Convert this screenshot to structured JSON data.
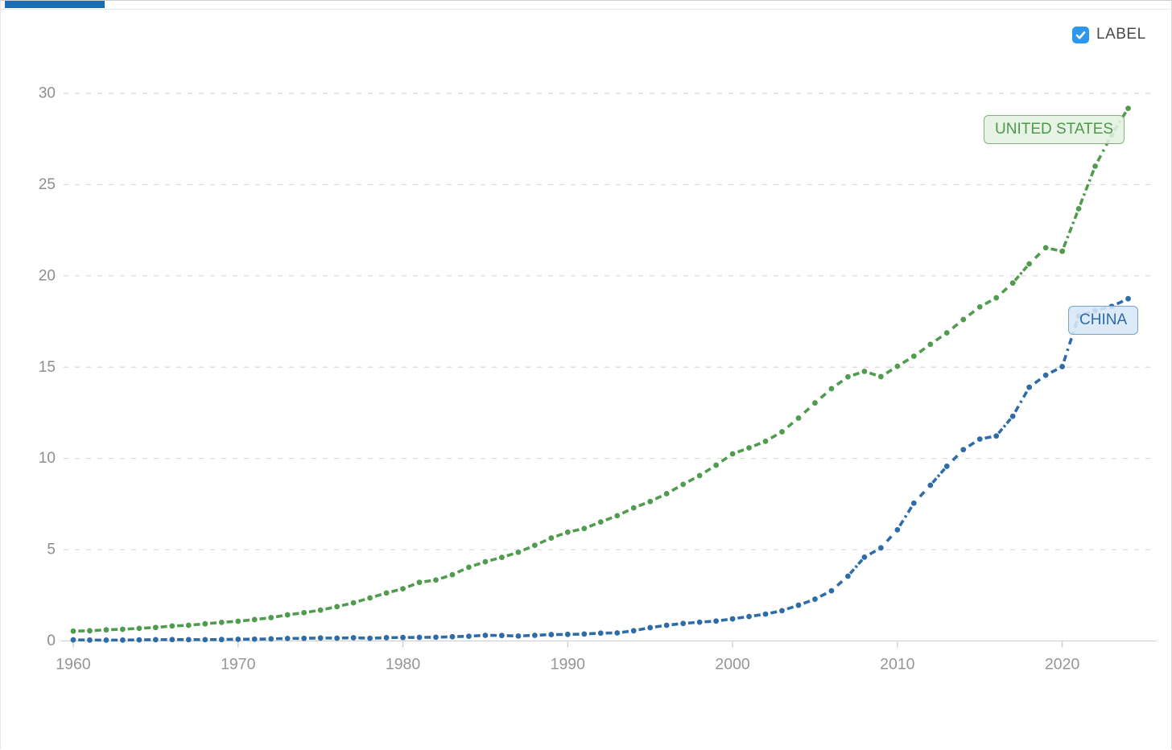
{
  "page": {
    "label_toggle": {
      "text": "LABEL",
      "checked": true,
      "checkbox_color": "#2b97ee"
    },
    "tab": {
      "active_indicator_color": "#1b6cb5"
    }
  },
  "chart_data": {
    "type": "line",
    "title": "",
    "xlabel": "",
    "ylabel": "",
    "x": [
      1960,
      1961,
      1962,
      1963,
      1964,
      1965,
      1966,
      1967,
      1968,
      1969,
      1970,
      1971,
      1972,
      1973,
      1974,
      1975,
      1976,
      1977,
      1978,
      1979,
      1980,
      1981,
      1982,
      1983,
      1984,
      1985,
      1986,
      1987,
      1988,
      1989,
      1990,
      1991,
      1992,
      1993,
      1994,
      1995,
      1996,
      1997,
      1998,
      1999,
      2000,
      2001,
      2002,
      2003,
      2004,
      2005,
      2006,
      2007,
      2008,
      2009,
      2010,
      2011,
      2012,
      2013,
      2014,
      2015,
      2016,
      2017,
      2018,
      2019,
      2020,
      2021,
      2022,
      2023,
      2024
    ],
    "series": [
      {
        "name": "UNITED STATES",
        "color": "#4f9c4f",
        "values": [
          0.54,
          0.56,
          0.61,
          0.64,
          0.69,
          0.74,
          0.82,
          0.86,
          0.94,
          1.02,
          1.08,
          1.17,
          1.28,
          1.43,
          1.55,
          1.69,
          1.88,
          2.09,
          2.36,
          2.63,
          2.86,
          3.21,
          3.34,
          3.63,
          4.04,
          4.34,
          4.58,
          4.86,
          5.24,
          5.64,
          5.96,
          6.16,
          6.52,
          6.86,
          7.29,
          7.64,
          8.07,
          8.58,
          9.06,
          9.63,
          10.25,
          10.58,
          10.94,
          11.46,
          12.21,
          13.04,
          13.82,
          14.47,
          14.77,
          14.48,
          15.05,
          15.6,
          16.25,
          16.88,
          17.61,
          18.3,
          18.8,
          19.61,
          20.66,
          21.54,
          21.35,
          23.68,
          26.01,
          27.72,
          29.18
        ]
      },
      {
        "name": "CHINA",
        "color": "#2d6ca9",
        "values": [
          0.06,
          0.05,
          0.047,
          0.051,
          0.06,
          0.07,
          0.077,
          0.073,
          0.071,
          0.08,
          0.093,
          0.099,
          0.113,
          0.139,
          0.144,
          0.163,
          0.154,
          0.175,
          0.15,
          0.178,
          0.191,
          0.196,
          0.205,
          0.231,
          0.26,
          0.31,
          0.3,
          0.27,
          0.31,
          0.35,
          0.36,
          0.38,
          0.43,
          0.44,
          0.56,
          0.73,
          0.86,
          0.96,
          1.03,
          1.09,
          1.21,
          1.34,
          1.47,
          1.66,
          1.96,
          2.29,
          2.75,
          3.55,
          4.59,
          5.1,
          6.09,
          7.55,
          8.53,
          9.57,
          10.48,
          11.06,
          11.23,
          12.31,
          13.9,
          14.56,
          15.03,
          17.8,
          18.1,
          18.33,
          18.75
        ]
      }
    ],
    "x_ticks": [
      1960,
      1970,
      1980,
      1990,
      2000,
      2010,
      2020
    ],
    "y_ticks": [
      0,
      5,
      10,
      15,
      20,
      25,
      30
    ],
    "xlim": [
      1959.3,
      2025.7
    ],
    "ylim": [
      0,
      30
    ],
    "grid": "horizontal-dashed",
    "legend_position": "none",
    "annotations": [
      {
        "text": "UNITED STATES",
        "series": "UNITED STATES",
        "near_year": 2023
      },
      {
        "text": "CHINA",
        "series": "CHINA",
        "near_year": 2022
      }
    ],
    "style": {
      "grid_color": "#d8d8d8",
      "axis_color": "#cccccc",
      "tick_label_color": "#959595"
    }
  }
}
